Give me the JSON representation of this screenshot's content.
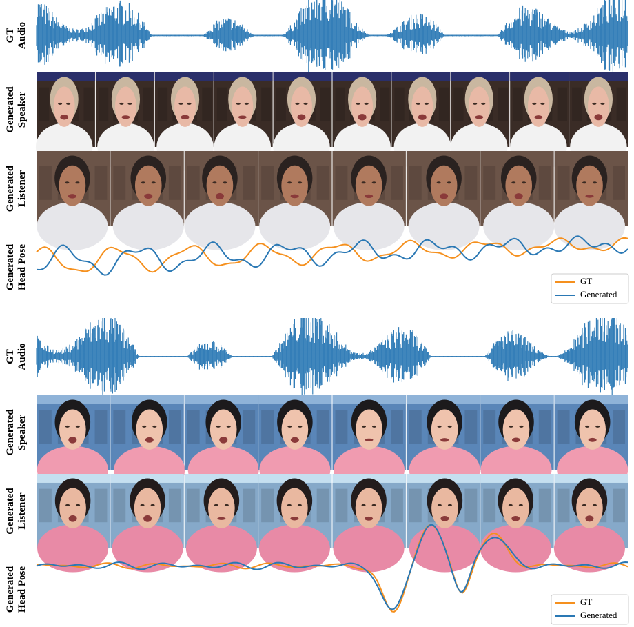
{
  "panels": [
    {
      "rows": [
        {
          "label": [
            "GT",
            "Audio"
          ]
        },
        {
          "label": [
            "Generated",
            "Speaker"
          ]
        },
        {
          "label": [
            "Generated",
            "Listener"
          ]
        },
        {
          "label": [
            "Generated",
            "Head Pose"
          ]
        }
      ],
      "legend": [
        "GT",
        "Generated"
      ]
    },
    {
      "rows": [
        {
          "label": [
            "GT",
            "Audio"
          ]
        },
        {
          "label": [
            "Generated",
            "Speaker"
          ]
        },
        {
          "label": [
            "Generated",
            "Listener"
          ]
        },
        {
          "label": [
            "Generated",
            "Head Pose"
          ]
        }
      ],
      "legend": [
        "GT",
        "Generated"
      ]
    }
  ]
}
